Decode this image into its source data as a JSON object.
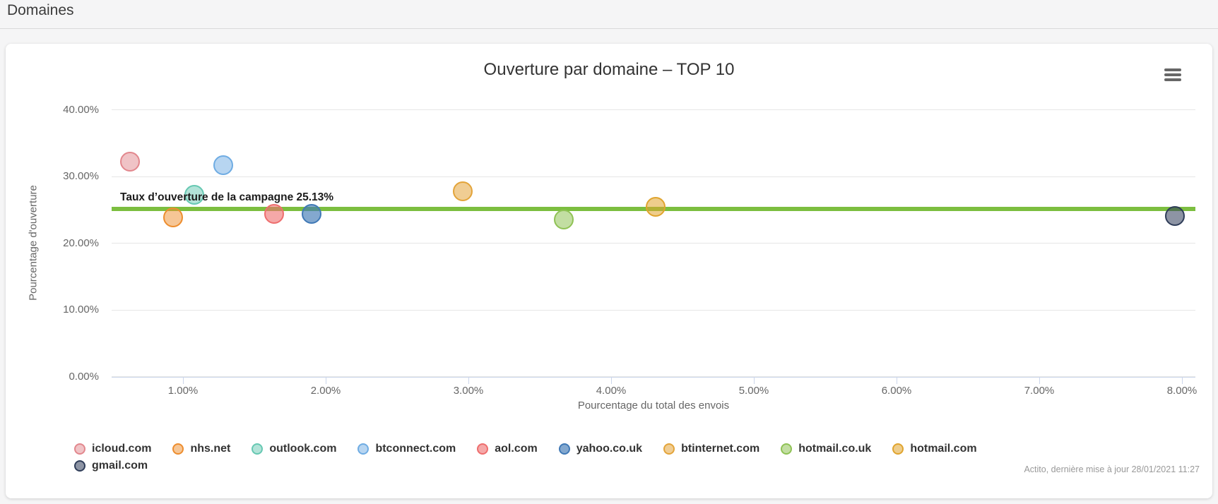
{
  "header": {
    "title": "Domaines"
  },
  "card": {
    "menu_icon": "hamburger-menu-icon",
    "credit": "Actito, dernière mise à jour 28/01/2021 11:27"
  },
  "chart_data": {
    "type": "scatter",
    "subtype": "bubble",
    "title": "Ouverture par domaine – TOP 10",
    "xlabel": "Pourcentage du total des envois",
    "ylabel": "Pourcentage d'ouverture",
    "xlim": [
      0.5,
      8.1
    ],
    "ylim": [
      0,
      42.5
    ],
    "grid": "horizontal",
    "legend_position": "bottom",
    "x_ticks": [
      {
        "value": 1,
        "label": "1.00%"
      },
      {
        "value": 2,
        "label": "2.00%"
      },
      {
        "value": 3,
        "label": "3.00%"
      },
      {
        "value": 4,
        "label": "4.00%"
      },
      {
        "value": 5,
        "label": "5.00%"
      },
      {
        "value": 6,
        "label": "6.00%"
      },
      {
        "value": 7,
        "label": "7.00%"
      },
      {
        "value": 8,
        "label": "8.00%"
      }
    ],
    "y_ticks": [
      {
        "value": 0,
        "label": "0.00%"
      },
      {
        "value": 10,
        "label": "10.00%"
      },
      {
        "value": 20,
        "label": "20.00%"
      },
      {
        "value": 30,
        "label": "30.00%"
      },
      {
        "value": 40,
        "label": "40.00%"
      }
    ],
    "plot_line": {
      "value": 25.13,
      "label": "Taux d’ouverture de la campagne 25.13%",
      "color": "#7CBE3F"
    },
    "series": [
      {
        "name": "icloud.com",
        "x": 0.63,
        "y": 32.2,
        "color": "#E2878D",
        "fill_alpha": 0.5
      },
      {
        "name": "nhs.net",
        "x": 0.93,
        "y": 23.9,
        "color": "#ED8D2E",
        "fill_alpha": 0.5
      },
      {
        "name": "outlook.com",
        "x": 1.08,
        "y": 27.2,
        "color": "#66C8B2",
        "fill_alpha": 0.5
      },
      {
        "name": "btconnect.com",
        "x": 1.28,
        "y": 31.7,
        "color": "#6FACE3",
        "fill_alpha": 0.5
      },
      {
        "name": "aol.com",
        "x": 1.64,
        "y": 24.4,
        "color": "#EE6E6E",
        "fill_alpha": 0.6
      },
      {
        "name": "yahoo.co.uk",
        "x": 1.9,
        "y": 24.4,
        "color": "#4079B6",
        "fill_alpha": 0.65
      },
      {
        "name": "btinternet.com",
        "x": 2.96,
        "y": 27.8,
        "color": "#E3A43A",
        "fill_alpha": 0.55
      },
      {
        "name": "hotmail.co.uk",
        "x": 3.67,
        "y": 23.5,
        "color": "#8FC255",
        "fill_alpha": 0.55
      },
      {
        "name": "hotmail.com",
        "x": 4.31,
        "y": 25.4,
        "color": "#E0A42E",
        "fill_alpha": 0.55
      },
      {
        "name": "gmail.com",
        "x": 7.95,
        "y": 24.1,
        "color": "#2F3D59",
        "fill_alpha": 0.55
      }
    ]
  }
}
